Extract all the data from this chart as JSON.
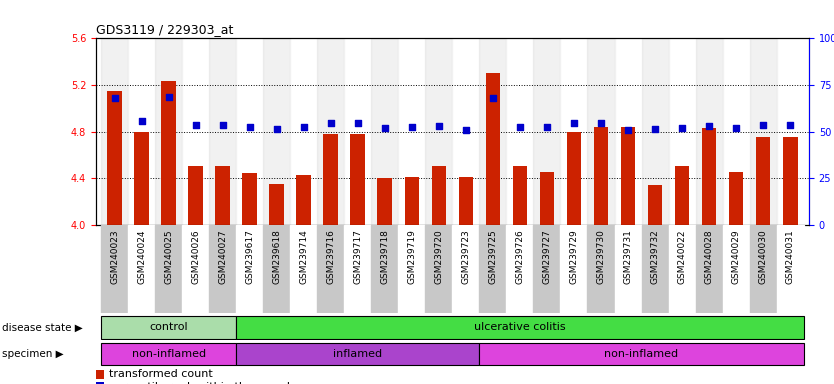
{
  "title": "GDS3119 / 229303_at",
  "samples": [
    "GSM240023",
    "GSM240024",
    "GSM240025",
    "GSM240026",
    "GSM240027",
    "GSM239617",
    "GSM239618",
    "GSM239714",
    "GSM239716",
    "GSM239717",
    "GSM239718",
    "GSM239719",
    "GSM239720",
    "GSM239723",
    "GSM239725",
    "GSM239726",
    "GSM239727",
    "GSM239729",
    "GSM239730",
    "GSM239731",
    "GSM239732",
    "GSM240022",
    "GSM240028",
    "GSM240029",
    "GSM240030",
    "GSM240031"
  ],
  "bar_values": [
    5.15,
    4.8,
    5.23,
    4.5,
    4.5,
    4.44,
    4.35,
    4.43,
    4.78,
    4.78,
    4.4,
    4.41,
    4.5,
    4.41,
    5.3,
    4.5,
    4.45,
    4.8,
    4.84,
    4.84,
    4.34,
    4.5,
    4.83,
    4.45,
    4.75,
    4.75
  ],
  "percentile_values": [
    5.09,
    4.89,
    5.1,
    4.86,
    4.86,
    4.84,
    4.82,
    4.84,
    4.87,
    4.87,
    4.83,
    4.84,
    4.85,
    4.81,
    5.09,
    4.84,
    4.84,
    4.87,
    4.87,
    4.81,
    4.82,
    4.83,
    4.85,
    4.83,
    4.86,
    4.86
  ],
  "ylim": [
    4.0,
    5.6
  ],
  "yticks_left": [
    4.0,
    4.4,
    4.8,
    5.2,
    5.6
  ],
  "yticks_right": [
    0,
    25,
    50,
    75,
    100
  ],
  "bar_color": "#cc2200",
  "dot_color": "#0000cc",
  "disease_control_range": [
    0,
    4
  ],
  "disease_uc_range": [
    5,
    25
  ],
  "specimen_noninf1_range": [
    0,
    4
  ],
  "specimen_inf_range": [
    5,
    13
  ],
  "specimen_noninf2_range": [
    14,
    25
  ],
  "control_color": "#aaddaa",
  "ulcerative_color": "#44dd44",
  "non_inflamed_color": "#dd44dd",
  "inflamed_color": "#aa44cc",
  "xtick_gray": "#c8c8c8",
  "grid_linestyle": "dotted"
}
